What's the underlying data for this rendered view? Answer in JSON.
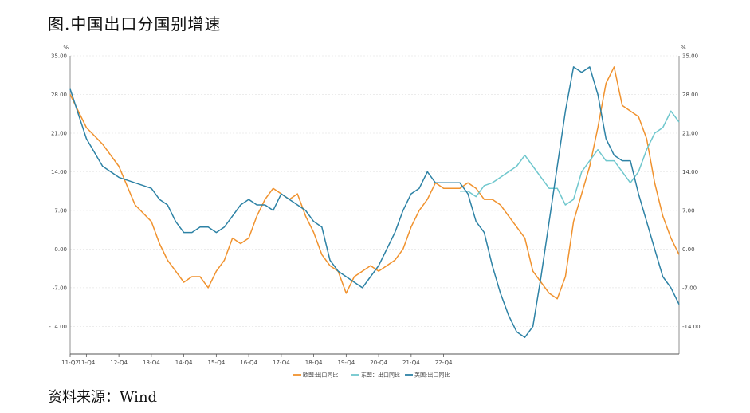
{
  "title": "图.中国出口分国别增速",
  "source": "资料来源：Wind",
  "chart_data": {
    "type": "line",
    "unit_left": "%",
    "unit_right": "%",
    "ylim": [
      -19,
      35
    ],
    "yticks": [
      35,
      28,
      21,
      14,
      7,
      0,
      -7,
      -14
    ],
    "ytick_labels": [
      "35.00",
      "28.00",
      "21.00",
      "14.00",
      "7.00",
      "0.00",
      "-7.00",
      "-14.00"
    ],
    "x_start": "11-Q2",
    "x_end": "22-Q4",
    "xticks": [
      "11-Q2",
      "11-Q4",
      "12-Q4",
      "13-Q4",
      "14-Q4",
      "15-Q4",
      "16-Q4",
      "17-Q4",
      "18-Q4",
      "19-Q4",
      "20-Q4",
      "21-Q4",
      "22-Q4"
    ],
    "grid": true,
    "legend_placement": "bottom-center",
    "series": [
      {
        "name": "欧盟:出口同比",
        "color": "#F0922E",
        "points": [
          [
            0,
            28
          ],
          [
            2,
            22
          ],
          [
            4,
            19
          ],
          [
            6,
            15
          ],
          [
            8,
            8
          ],
          [
            10,
            5
          ],
          [
            11,
            1
          ],
          [
            12,
            -2
          ],
          [
            13,
            -4
          ],
          [
            14,
            -6
          ],
          [
            15,
            -5
          ],
          [
            16,
            -5
          ],
          [
            17,
            -7
          ],
          [
            18,
            -4
          ],
          [
            19,
            -2
          ],
          [
            20,
            2
          ],
          [
            21,
            1
          ],
          [
            22,
            2
          ],
          [
            23,
            6
          ],
          [
            24,
            9
          ],
          [
            25,
            11
          ],
          [
            26,
            10
          ],
          [
            27,
            9
          ],
          [
            28,
            10
          ],
          [
            29,
            6
          ],
          [
            30,
            3
          ],
          [
            31,
            -1
          ],
          [
            32,
            -3
          ],
          [
            33,
            -4
          ],
          [
            34,
            -8
          ],
          [
            35,
            -5
          ],
          [
            36,
            -4
          ],
          [
            37,
            -3
          ],
          [
            38,
            -4
          ],
          [
            39,
            -3
          ],
          [
            40,
            -2
          ],
          [
            41,
            0
          ],
          [
            42,
            4
          ],
          [
            43,
            7
          ],
          [
            44,
            9
          ],
          [
            45,
            12
          ],
          [
            46,
            11
          ],
          [
            47,
            11
          ],
          [
            48,
            11
          ],
          [
            49,
            12
          ],
          [
            50,
            11
          ],
          [
            51,
            9
          ],
          [
            52,
            9
          ],
          [
            53,
            8
          ],
          [
            54,
            6
          ],
          [
            55,
            4
          ],
          [
            56,
            2
          ],
          [
            57,
            -4
          ],
          [
            58,
            -6
          ],
          [
            59,
            -8
          ],
          [
            60,
            -9
          ],
          [
            61,
            -5
          ],
          [
            62,
            5
          ],
          [
            63,
            10
          ],
          [
            64,
            15
          ],
          [
            65,
            22
          ],
          [
            66,
            30
          ],
          [
            67,
            33
          ],
          [
            68,
            26
          ],
          [
            69,
            25
          ],
          [
            70,
            24
          ],
          [
            71,
            20
          ],
          [
            72,
            12
          ],
          [
            73,
            6
          ],
          [
            74,
            2
          ],
          [
            75,
            -1
          ]
        ]
      },
      {
        "name": "东盟：出口同比",
        "color": "#6FC7CD",
        "points": [
          [
            48,
            10.5
          ],
          [
            49,
            10.5
          ],
          [
            50,
            9.5
          ],
          [
            51,
            11.5
          ],
          [
            52,
            12
          ],
          [
            53,
            13
          ],
          [
            54,
            14
          ],
          [
            55,
            15
          ],
          [
            56,
            17
          ],
          [
            57,
            15
          ],
          [
            58,
            13
          ],
          [
            59,
            11
          ],
          [
            60,
            11
          ],
          [
            61,
            8
          ],
          [
            62,
            9
          ],
          [
            63,
            14
          ],
          [
            64,
            16
          ],
          [
            65,
            18
          ],
          [
            66,
            16
          ],
          [
            67,
            16
          ],
          [
            68,
            14
          ],
          [
            69,
            12
          ],
          [
            70,
            14
          ],
          [
            71,
            18
          ],
          [
            72,
            21
          ],
          [
            73,
            22
          ],
          [
            74,
            25
          ],
          [
            75,
            23
          ]
        ]
      },
      {
        "name": "美国:出口同比",
        "color": "#2D82A5",
        "points": [
          [
            0,
            29
          ],
          [
            2,
            20
          ],
          [
            4,
            15
          ],
          [
            6,
            13
          ],
          [
            8,
            12
          ],
          [
            10,
            11
          ],
          [
            11,
            9
          ],
          [
            12,
            8
          ],
          [
            13,
            5
          ],
          [
            14,
            3
          ],
          [
            15,
            3
          ],
          [
            16,
            4
          ],
          [
            17,
            4
          ],
          [
            18,
            3
          ],
          [
            19,
            4
          ],
          [
            20,
            6
          ],
          [
            21,
            8
          ],
          [
            22,
            9
          ],
          [
            23,
            8
          ],
          [
            24,
            8
          ],
          [
            25,
            7
          ],
          [
            26,
            10
          ],
          [
            27,
            9
          ],
          [
            28,
            8
          ],
          [
            29,
            7
          ],
          [
            30,
            5
          ],
          [
            31,
            4
          ],
          [
            32,
            -2
          ],
          [
            33,
            -4
          ],
          [
            34,
            -5
          ],
          [
            35,
            -6
          ],
          [
            36,
            -7
          ],
          [
            37,
            -5
          ],
          [
            38,
            -3
          ],
          [
            39,
            0
          ],
          [
            40,
            3
          ],
          [
            41,
            7
          ],
          [
            42,
            10
          ],
          [
            43,
            11
          ],
          [
            44,
            14
          ],
          [
            45,
            12
          ],
          [
            46,
            12
          ],
          [
            47,
            12
          ],
          [
            48,
            12
          ],
          [
            49,
            10
          ],
          [
            50,
            5
          ],
          [
            51,
            3
          ],
          [
            52,
            -3
          ],
          [
            53,
            -8
          ],
          [
            54,
            -12
          ],
          [
            55,
            -15
          ],
          [
            56,
            -16
          ],
          [
            57,
            -14
          ],
          [
            58,
            -5
          ],
          [
            59,
            5
          ],
          [
            60,
            15
          ],
          [
            61,
            25
          ],
          [
            62,
            33
          ],
          [
            63,
            32
          ],
          [
            64,
            33
          ],
          [
            65,
            28
          ],
          [
            66,
            20
          ],
          [
            67,
            17
          ],
          [
            68,
            16
          ],
          [
            69,
            16
          ],
          [
            70,
            10
          ],
          [
            71,
            5
          ],
          [
            72,
            0
          ],
          [
            73,
            -5
          ],
          [
            74,
            -7
          ],
          [
            75,
            -10
          ]
        ]
      }
    ]
  }
}
